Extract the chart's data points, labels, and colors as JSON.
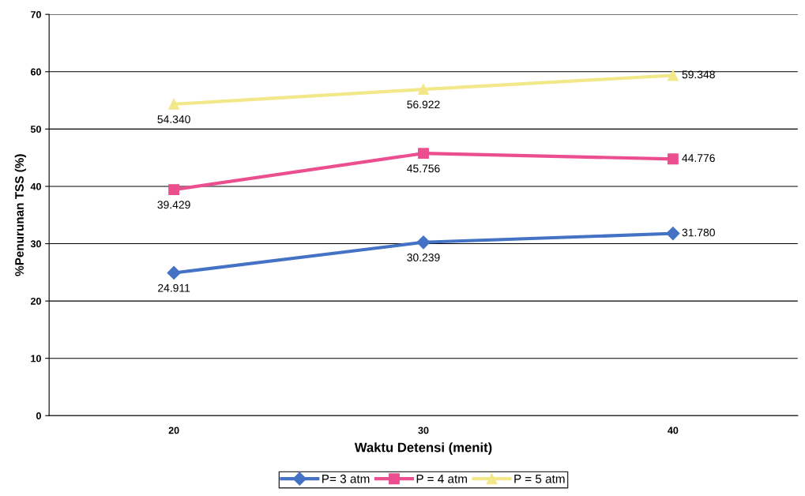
{
  "chart_data": {
    "type": "line",
    "xlabel": "Waktu Detensi (menit)",
    "ylabel": "%Penurunan TSS (%)",
    "categories": [
      "20",
      "30",
      "40"
    ],
    "series": [
      {
        "name": "P= 3 atm",
        "color": "#4472c4",
        "marker": "diamond",
        "values": [
          24.911,
          30.239,
          31.78
        ],
        "value_labels": [
          "24.911",
          "30.239",
          "31.780"
        ]
      },
      {
        "name": "P = 4 atm",
        "color": "#ec4f8f",
        "marker": "square",
        "values": [
          39.429,
          45.756,
          44.776
        ],
        "value_labels": [
          "39.429",
          "45.756",
          "44.776"
        ]
      },
      {
        "name": "P = 5 atm",
        "color": "#f2e88a",
        "marker": "triangle",
        "values": [
          54.34,
          56.922,
          59.348
        ],
        "value_labels": [
          "54.340",
          "56.922",
          "59.348"
        ]
      }
    ],
    "ylim": [
      0,
      70
    ],
    "yticks": [
      0,
      10,
      20,
      30,
      40,
      50,
      60,
      70
    ],
    "grid": "y",
    "legend": "bottom"
  }
}
